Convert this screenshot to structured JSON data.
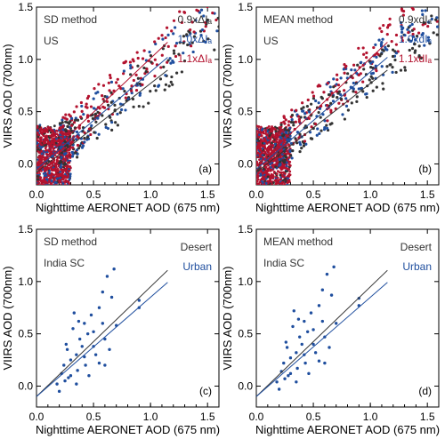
{
  "axis_common": {
    "xlabel": "Nighttime AERONET AOD (675 nm)",
    "ylabel": "VIIRS AOD (700nm)",
    "xlim": [
      0,
      1.6
    ],
    "ylim": [
      -0.2,
      1.5
    ],
    "xticks": [
      "0.0",
      "0.5",
      "1.0",
      "1.5"
    ],
    "yticks": [
      "0.0",
      "0.5",
      "1.0",
      "1.5"
    ]
  },
  "colors": {
    "black": "#333333",
    "blue": "#1f4e9e",
    "red": "#b3122e"
  },
  "chart_data": [
    {
      "type": "scatter",
      "panel": "(a)",
      "method": "SD method",
      "region": "US",
      "series": [
        {
          "name": "0.9xΔIₐ",
          "color": "#333333",
          "fit": {
            "slope": 0.85,
            "intercept": -0.08
          }
        },
        {
          "name": "1.0xΔIₐ",
          "color": "#1f4e9e",
          "fit": {
            "slope": 0.93,
            "intercept": -0.05
          }
        },
        {
          "name": "1.1xΔIₐ",
          "color": "#b3122e",
          "fit": {
            "slope": 1.03,
            "intercept": -0.02
          }
        }
      ],
      "xlabel": "Nighttime AERONET AOD (675 nm)",
      "ylabel": "VIIRS AOD (700nm)",
      "xlim": [
        0,
        1.6
      ],
      "ylim": [
        -0.2,
        1.5
      ]
    },
    {
      "type": "scatter",
      "panel": "(b)",
      "method": "MEAN method",
      "region": "US",
      "series": [
        {
          "name": "0.9xdIₐ",
          "color": "#333333",
          "fit": {
            "slope": 0.85,
            "intercept": -0.08
          }
        },
        {
          "name": "1.0xdIₐ",
          "color": "#1f4e9e",
          "fit": {
            "slope": 0.93,
            "intercept": -0.05
          }
        },
        {
          "name": "1.1xdIₐ",
          "color": "#b3122e",
          "fit": {
            "slope": 1.03,
            "intercept": -0.02
          }
        }
      ],
      "xlabel": "Nighttime AERONET AOD (675 nm)",
      "ylabel": "VIIRS AOD (700nm)",
      "xlim": [
        0,
        1.6
      ],
      "ylim": [
        -0.2,
        1.5
      ]
    },
    {
      "type": "scatter",
      "panel": "(c)",
      "method": "SD method",
      "region": "India SC",
      "series": [
        {
          "name": "Desert",
          "color": "#333333",
          "fit": {
            "slope": 1.05,
            "intercept": -0.1
          }
        },
        {
          "name": "Urban",
          "color": "#1f4e9e",
          "fit": {
            "slope": 0.95,
            "intercept": -0.1
          }
        }
      ],
      "points": [
        [
          0.18,
          0.02
        ],
        [
          0.2,
          -0.05
        ],
        [
          0.22,
          0.12
        ],
        [
          0.24,
          0.2
        ],
        [
          0.25,
          0.05
        ],
        [
          0.27,
          0.35
        ],
        [
          0.28,
          0.08
        ],
        [
          0.3,
          0.25
        ],
        [
          0.32,
          0.55
        ],
        [
          0.33,
          0.7
        ],
        [
          0.35,
          0.3
        ],
        [
          0.36,
          0.15
        ],
        [
          0.37,
          0.62
        ],
        [
          0.38,
          0.45
        ],
        [
          0.4,
          0.38
        ],
        [
          0.42,
          0.6
        ],
        [
          0.43,
          0.2
        ],
        [
          0.45,
          0.5
        ],
        [
          0.46,
          0.1
        ],
        [
          0.48,
          0.68
        ],
        [
          0.5,
          0.52
        ],
        [
          0.52,
          0.3
        ],
        [
          0.55,
          0.75
        ],
        [
          0.58,
          0.9
        ],
        [
          0.6,
          0.45
        ],
        [
          0.62,
          1.05
        ],
        [
          0.64,
          0.35
        ],
        [
          0.66,
          0.85
        ],
        [
          0.68,
          1.12
        ],
        [
          0.7,
          0.58
        ],
        [
          0.55,
          0.22
        ],
        [
          0.5,
          0.38
        ],
        [
          0.42,
          0.28
        ],
        [
          0.3,
          0.1
        ],
        [
          0.26,
          0.4
        ],
        [
          0.9,
          0.82
        ],
        [
          0.9,
          0.75
        ],
        [
          0.58,
          0.6
        ],
        [
          0.6,
          0.2
        ],
        [
          0.35,
          0.02
        ]
      ],
      "xlabel": "Nighttime AERONET AOD (675 nm)",
      "ylabel": "VIIRS AOD (700nm)",
      "xlim": [
        0,
        1.6
      ],
      "ylim": [
        -0.2,
        1.5
      ]
    },
    {
      "type": "scatter",
      "panel": "(d)",
      "method": "MEAN method",
      "region": "India SC",
      "series": [
        {
          "name": "Desert",
          "color": "#333333",
          "fit": {
            "slope": 1.05,
            "intercept": -0.1
          }
        },
        {
          "name": "Urban",
          "color": "#1f4e9e",
          "fit": {
            "slope": 0.95,
            "intercept": -0.1
          }
        }
      ],
      "points": [
        [
          0.18,
          0.04
        ],
        [
          0.2,
          -0.03
        ],
        [
          0.22,
          0.14
        ],
        [
          0.24,
          0.22
        ],
        [
          0.25,
          0.07
        ],
        [
          0.27,
          0.37
        ],
        [
          0.28,
          0.1
        ],
        [
          0.3,
          0.27
        ],
        [
          0.32,
          0.57
        ],
        [
          0.33,
          0.72
        ],
        [
          0.35,
          0.32
        ],
        [
          0.36,
          0.17
        ],
        [
          0.37,
          0.64
        ],
        [
          0.38,
          0.47
        ],
        [
          0.4,
          0.4
        ],
        [
          0.42,
          0.62
        ],
        [
          0.43,
          0.22
        ],
        [
          0.45,
          0.52
        ],
        [
          0.46,
          0.12
        ],
        [
          0.48,
          0.7
        ],
        [
          0.5,
          0.54
        ],
        [
          0.52,
          0.32
        ],
        [
          0.55,
          0.77
        ],
        [
          0.58,
          0.92
        ],
        [
          0.6,
          0.47
        ],
        [
          0.62,
          1.07
        ],
        [
          0.64,
          0.37
        ],
        [
          0.66,
          0.87
        ],
        [
          0.68,
          1.14
        ],
        [
          0.7,
          0.6
        ],
        [
          0.55,
          0.24
        ],
        [
          0.5,
          0.4
        ],
        [
          0.42,
          0.3
        ],
        [
          0.3,
          0.12
        ],
        [
          0.26,
          0.42
        ],
        [
          0.9,
          0.84
        ],
        [
          0.9,
          0.77
        ],
        [
          0.58,
          0.62
        ],
        [
          0.6,
          0.22
        ],
        [
          0.35,
          0.04
        ]
      ],
      "xlabel": "Nighttime AERONET AOD (675 nm)",
      "ylabel": "VIIRS AOD (700nm)",
      "xlim": [
        0,
        1.6
      ],
      "ylim": [
        -0.2,
        1.5
      ]
    }
  ]
}
